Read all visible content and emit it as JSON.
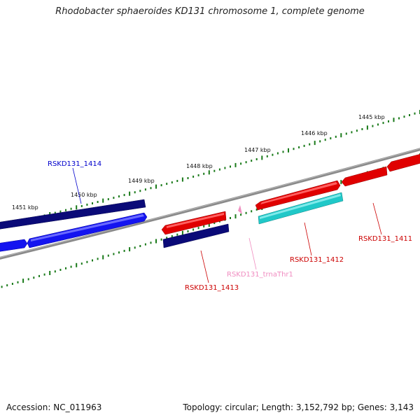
{
  "title": "Rhodobacter sphaeroides KD131 chromosome 1, complete genome",
  "footer": {
    "accession": "Accession: NC_011963",
    "summary": "Topology: circular; Length: 3,152,792 bp; Genes: 3,143"
  },
  "scale_labels": [
    "1445 kbp",
    "1446 kbp",
    "1447 kbp",
    "1448 kbp",
    "1449 kbp",
    "1450 kbp",
    "1451 kbp"
  ],
  "gene_labels": {
    "rsk1414": "RSKD131_1414",
    "rsk1413": "RSKD131_1413",
    "trna": "RSKD131_trnaThr1",
    "rsk1412": "RSKD131_1412",
    "rsk1411": "RSKD131_1411"
  },
  "colors": {
    "tick": "#1a7a1a",
    "backbone": "#808080",
    "red_gene": "#e00000",
    "navy_gene": "#0a0a78",
    "blue_gene": "#1414f0",
    "cyan_gene": "#20c8c8",
    "pink_trna": "#f090c0",
    "label_red": "#cc0000",
    "label_blue": "#0000cc",
    "label_pink": "#f08cc0"
  }
}
